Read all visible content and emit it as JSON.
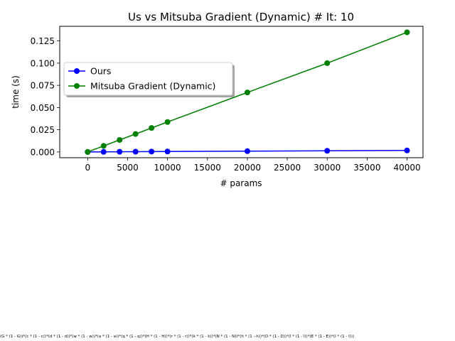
{
  "chart_data": {
    "type": "line",
    "title": "Us vs Mitsuba Gradient (Dynamic) # It: 10",
    "xlabel": "# params",
    "ylabel": "time (s)",
    "xlim": [
      -3500,
      42000
    ],
    "ylim": [
      -0.0065,
      0.1415
    ],
    "xticks": [
      0,
      5000,
      10000,
      15000,
      20000,
      25000,
      30000,
      35000,
      40000
    ],
    "yticks": [
      0.0,
      0.025,
      0.05,
      0.075,
      0.1,
      0.125
    ],
    "xtick_labels": [
      "0",
      "5000",
      "10000",
      "15000",
      "20000",
      "25000",
      "30000",
      "35000",
      "40000"
    ],
    "ytick_labels": [
      "0.000",
      "0.025",
      "0.050",
      "0.075",
      "0.100",
      "0.125"
    ],
    "grid": false,
    "legend_position": "upper-left",
    "series": [
      {
        "name": "Ours",
        "color": "#0000ff",
        "x": [
          0,
          2000,
          4000,
          6000,
          8000,
          10000,
          20000,
          30000,
          40000
        ],
        "y": [
          0.0,
          0.0001,
          0.0002,
          0.0003,
          0.0004,
          0.0005,
          0.0009,
          0.0013,
          0.0017
        ]
      },
      {
        "name": "Mitsuba Gradient (Dynamic)",
        "color": "#008000",
        "x": [
          0,
          2000,
          4000,
          6000,
          8000,
          10000,
          20000,
          30000,
          40000
        ],
        "y": [
          0.0,
          0.0068,
          0.0135,
          0.0202,
          0.027,
          0.0337,
          0.067,
          0.1,
          0.1347
        ]
      }
    ]
  },
  "footer": {
    "formula": "(G * (1 - G))*(c * (1 - c))*(d * (1 - d))*(w * (1 - w))*(a * (1 - a))*(q * (1 - q))*(H * (1 - H))*(r * (1 - r))*(k * (1 - k))*(N * (1 - N))*(h * (1 - h))*(D * (1 - D))*(l * (1 - l))*(E * (1 - E))*(I * (1 - I)))"
  }
}
